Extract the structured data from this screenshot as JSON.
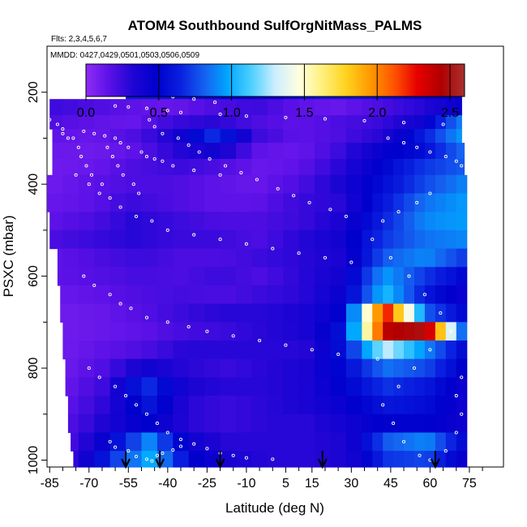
{
  "chart_data": {
    "type": "heatmap",
    "title": "ATOM4 Southbound SulfOrgNitMass_PALMS",
    "flights_label": "Flts: 2,3,4,5,6,7",
    "dates_label": "MMDD: 0427,0429,0501,0503,0506,0509",
    "xlabel": "Latitude (deg N)",
    "ylabel": "PSXC (mbar)",
    "xlim": [
      -86,
      88
    ],
    "ylim": [
      1015,
      100
    ],
    "y_reversed": true,
    "x_ticks": [
      "-85",
      "-70",
      "-55",
      "-40",
      "-25",
      "-10",
      "5",
      "15",
      "30",
      "45",
      "60",
      "75"
    ],
    "x_tick_values": [
      -85,
      -70,
      -55,
      -40,
      -25,
      -10,
      5,
      15,
      30,
      45,
      60,
      75
    ],
    "y_ticks": [
      "200",
      "400",
      "600",
      "800",
      "1000"
    ],
    "y_tick_values": [
      200,
      400,
      600,
      800,
      1000
    ],
    "colorbar": {
      "range": [
        0,
        2.6
      ],
      "ticks": [
        "0.0",
        "0.5",
        "1.0",
        "1.5",
        "2.0",
        "2.5"
      ],
      "tick_values": [
        0.0,
        0.5,
        1.0,
        1.5,
        2.0,
        2.5
      ],
      "colors": [
        "#8f2cf7",
        "#5a10e6",
        "#1e05d4",
        "#0000cc",
        "#0a20e0",
        "#1560f0",
        "#00a8ff",
        "#4fd0ff",
        "#cdeeff",
        "#ffffe0",
        "#fff07a",
        "#ffd21e",
        "#ff9a00",
        "#ff5500",
        "#e80000",
        "#b00000",
        "#a83030"
      ]
    },
    "y_bins": [
      180,
      215,
      250,
      280,
      310,
      345,
      380,
      420,
      460,
      500,
      540,
      580,
      620,
      660,
      700,
      740,
      780,
      820,
      860,
      900,
      940,
      980,
      1015
    ],
    "x_bins": [
      -86,
      -80,
      -74,
      -68,
      -62,
      -56,
      -50,
      -44,
      -38,
      -32,
      -26,
      -20,
      -14,
      -8,
      -2,
      4,
      10,
      16,
      22,
      28,
      34,
      38,
      42,
      46,
      50,
      54,
      58,
      62,
      66,
      70,
      74
    ],
    "row_x_extent": [
      [
        -56,
        72
      ],
      [
        -85,
        72
      ],
      [
        -85,
        72
      ],
      [
        -84,
        72
      ],
      [
        -84,
        73
      ],
      [
        -84,
        73
      ],
      [
        -86,
        74
      ],
      [
        -86,
        74
      ],
      [
        -85,
        74
      ],
      [
        -85,
        74
      ],
      [
        -82,
        74
      ],
      [
        -82,
        74
      ],
      [
        -81,
        74
      ],
      [
        -81,
        74
      ],
      [
        -80,
        74
      ],
      [
        -80,
        74
      ],
      [
        -79,
        74
      ],
      [
        -79,
        74
      ],
      [
        -78,
        74
      ],
      [
        -78,
        74
      ],
      [
        -77,
        74
      ],
      [
        -76,
        74
      ]
    ],
    "row_profiles": [
      [
        0.62,
        0.6,
        0.55,
        0.5,
        0.45,
        0.55,
        0.6,
        0.6,
        0.55,
        0.5,
        0.45
      ],
      [
        0.25,
        0.2,
        0.15,
        0.12,
        0.2,
        0.25,
        0.15,
        0.12,
        0.2,
        0.3,
        0.45
      ],
      [
        0.2,
        0.15,
        0.12,
        0.25,
        0.3,
        0.2,
        0.15,
        0.2,
        0.25,
        0.4,
        0.9
      ],
      [
        0.15,
        0.12,
        0.2,
        0.35,
        0.7,
        0.25,
        0.15,
        0.2,
        0.3,
        0.6,
        0.95
      ],
      [
        0.12,
        0.1,
        0.15,
        0.3,
        0.4,
        0.15,
        0.12,
        0.25,
        0.45,
        0.55,
        0.85
      ],
      [
        0.1,
        0.12,
        0.2,
        0.25,
        0.2,
        0.12,
        0.15,
        0.3,
        0.5,
        0.7,
        0.8
      ],
      [
        0.1,
        0.15,
        0.2,
        0.2,
        0.15,
        0.12,
        0.2,
        0.35,
        0.55,
        0.75,
        0.9
      ],
      [
        0.12,
        0.15,
        0.25,
        0.2,
        0.15,
        0.15,
        0.25,
        0.3,
        0.6,
        0.85,
        0.95
      ],
      [
        0.15,
        0.2,
        0.3,
        0.25,
        0.2,
        0.2,
        0.25,
        0.35,
        0.65,
        0.9,
        0.95
      ],
      [
        0.2,
        0.25,
        0.3,
        0.25,
        0.25,
        0.2,
        0.3,
        0.4,
        0.7,
        0.85,
        0.9
      ],
      [
        0.15,
        0.2,
        0.25,
        0.2,
        0.2,
        0.25,
        0.3,
        0.35,
        0.8,
        0.9,
        0.7
      ],
      [
        0.15,
        0.18,
        0.22,
        0.2,
        0.25,
        0.2,
        0.3,
        0.4,
        0.95,
        0.7,
        0.5
      ],
      [
        0.12,
        0.15,
        0.2,
        0.22,
        0.2,
        0.25,
        0.3,
        0.45,
        1.05,
        0.6,
        0.4
      ],
      [
        0.1,
        0.12,
        0.18,
        0.25,
        0.3,
        0.3,
        0.35,
        0.5,
        2.3,
        0.8,
        0.5
      ],
      [
        0.1,
        0.12,
        0.15,
        0.22,
        0.25,
        0.3,
        0.35,
        0.6,
        2.4,
        2.5,
        0.6
      ],
      [
        0.1,
        0.15,
        0.2,
        0.3,
        0.3,
        0.3,
        0.3,
        0.6,
        1.3,
        0.9,
        0.5
      ],
      [
        0.1,
        0.2,
        0.4,
        0.3,
        0.25,
        0.3,
        0.35,
        0.55,
        0.85,
        0.75,
        0.45
      ],
      [
        0.12,
        0.25,
        0.7,
        0.35,
        0.3,
        0.3,
        0.35,
        0.5,
        0.7,
        0.6,
        0.4
      ],
      [
        0.15,
        0.3,
        0.6,
        0.3,
        0.25,
        0.3,
        0.35,
        0.45,
        0.6,
        0.55,
        0.4
      ],
      [
        0.18,
        0.35,
        0.5,
        0.3,
        0.25,
        0.3,
        0.3,
        0.4,
        0.5,
        0.5,
        0.4
      ],
      [
        0.2,
        0.5,
        0.9,
        0.4,
        0.3,
        0.3,
        0.3,
        0.35,
        0.8,
        0.9,
        0.5
      ],
      [
        0.25,
        0.7,
        1.0,
        0.5,
        0.35,
        0.3,
        0.3,
        0.35,
        0.7,
        0.75,
        0.4
      ]
    ],
    "arrows_latitude": [
      -56,
      -43,
      -20,
      19,
      62
    ],
    "sample_points": [
      [
        -44,
        200
      ],
      [
        -38,
        210
      ],
      [
        -30,
        215
      ],
      [
        -22,
        222
      ],
      [
        -60,
        230
      ],
      [
        -55,
        232
      ],
      [
        -48,
        235
      ],
      [
        -40,
        240
      ],
      [
        -35,
        244
      ],
      [
        -20,
        248
      ],
      [
        -10,
        252
      ],
      [
        5,
        255
      ],
      [
        20,
        258
      ],
      [
        35,
        262
      ],
      [
        50,
        266
      ],
      [
        65,
        270
      ],
      [
        -80,
        290
      ],
      [
        -78,
        300
      ],
      [
        -72,
        285
      ],
      [
        -68,
        290
      ],
      [
        -64,
        295
      ],
      [
        -60,
        300
      ],
      [
        -58,
        310
      ],
      [
        -55,
        320
      ],
      [
        -50,
        330
      ],
      [
        -48,
        340
      ],
      [
        -45,
        345
      ],
      [
        -42,
        350
      ],
      [
        -38,
        360
      ],
      [
        -30,
        370
      ],
      [
        -20,
        380
      ],
      [
        -75,
        380
      ],
      [
        -70,
        400
      ],
      [
        -66,
        420
      ],
      [
        -62,
        430
      ],
      [
        -58,
        450
      ],
      [
        -52,
        470
      ],
      [
        -46,
        480
      ],
      [
        -40,
        500
      ],
      [
        -30,
        510
      ],
      [
        -20,
        520
      ],
      [
        -10,
        530
      ],
      [
        0,
        540
      ],
      [
        10,
        550
      ],
      [
        20,
        560
      ],
      [
        30,
        570
      ],
      [
        -72,
        600
      ],
      [
        -68,
        620
      ],
      [
        -62,
        640
      ],
      [
        -58,
        660
      ],
      [
        -54,
        670
      ],
      [
        -48,
        690
      ],
      [
        -40,
        700
      ],
      [
        -32,
        710
      ],
      [
        -25,
        720
      ],
      [
        -15,
        730
      ],
      [
        -5,
        740
      ],
      [
        5,
        750
      ],
      [
        15,
        760
      ],
      [
        25,
        770
      ],
      [
        40,
        780
      ],
      [
        -70,
        800
      ],
      [
        -66,
        820
      ],
      [
        -60,
        840
      ],
      [
        -56,
        860
      ],
      [
        -52,
        880
      ],
      [
        -48,
        900
      ],
      [
        -44,
        920
      ],
      [
        -40,
        940
      ],
      [
        -35,
        955
      ],
      [
        -30,
        965
      ],
      [
        -25,
        975
      ],
      [
        -20,
        985
      ],
      [
        -15,
        990
      ],
      [
        -10,
        995
      ],
      [
        0,
        998
      ],
      [
        -62,
        960
      ],
      [
        -60,
        972
      ],
      [
        -55,
        980
      ],
      [
        -52,
        992
      ],
      [
        -48,
        998
      ],
      [
        -46,
        1002
      ],
      [
        -44,
        990
      ],
      [
        -42,
        985
      ],
      [
        -38,
        978
      ],
      [
        -35,
        970
      ],
      [
        44,
        300
      ],
      [
        50,
        310
      ],
      [
        55,
        320
      ],
      [
        60,
        330
      ],
      [
        66,
        340
      ],
      [
        70,
        350
      ],
      [
        72,
        360
      ],
      [
        60,
        420
      ],
      [
        55,
        440
      ],
      [
        48,
        460
      ],
      [
        42,
        480
      ],
      [
        38,
        520
      ],
      [
        45,
        560
      ],
      [
        52,
        600
      ],
      [
        58,
        640
      ],
      [
        64,
        680
      ],
      [
        68,
        720
      ],
      [
        60,
        760
      ],
      [
        54,
        800
      ],
      [
        48,
        840
      ],
      [
        42,
        880
      ],
      [
        46,
        920
      ],
      [
        50,
        960
      ],
      [
        56,
        990
      ],
      [
        60,
        1000
      ],
      [
        66,
        980
      ],
      [
        70,
        940
      ],
      [
        72,
        900
      ],
      [
        70,
        860
      ],
      [
        72,
        820
      ],
      [
        -85,
        260
      ],
      [
        -82,
        270
      ],
      [
        -80,
        280
      ],
      [
        -76,
        300
      ],
      [
        -74,
        320
      ],
      [
        -73,
        340
      ],
      [
        -71,
        360
      ],
      [
        -69,
        380
      ],
      [
        -65,
        400
      ],
      [
        -63,
        320
      ],
      [
        -61,
        340
      ],
      [
        -59,
        360
      ],
      [
        -57,
        380
      ],
      [
        -53,
        400
      ],
      [
        -51,
        420
      ],
      [
        -47,
        260
      ],
      [
        -45,
        275
      ],
      [
        -42,
        290
      ],
      [
        -36,
        300
      ],
      [
        -32,
        315
      ],
      [
        -28,
        330
      ],
      [
        -24,
        345
      ],
      [
        -18,
        360
      ],
      [
        -12,
        375
      ],
      [
        -6,
        390
      ],
      [
        2,
        410
      ],
      [
        8,
        425
      ],
      [
        14,
        440
      ],
      [
        22,
        455
      ],
      [
        28,
        470
      ]
    ]
  }
}
